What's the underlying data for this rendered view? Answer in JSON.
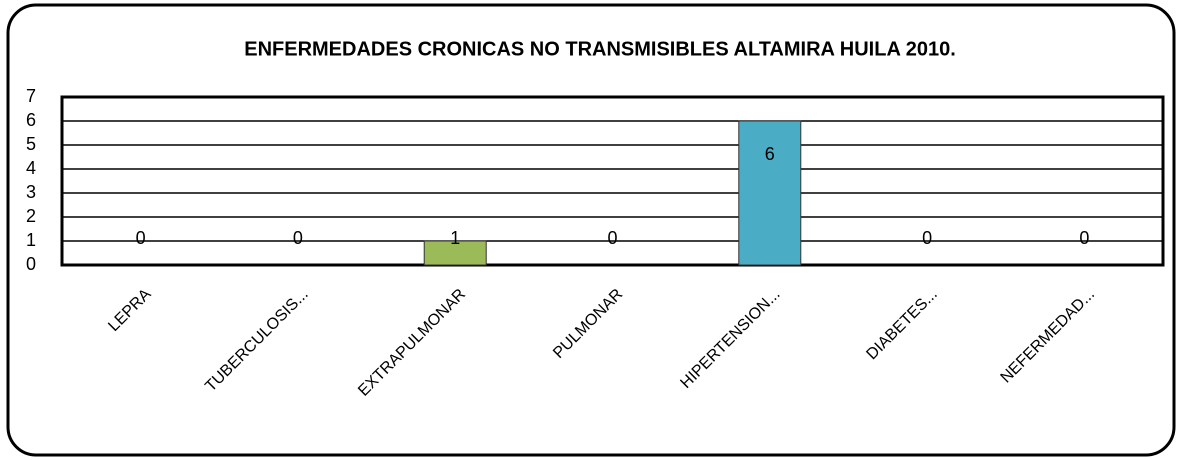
{
  "chart_data": {
    "type": "bar",
    "title": "ENFERMEDADES CRONICAS NO TRANSMISIBLES ALTAMIRA HUILA 2010.",
    "categories": [
      "LEPRA",
      "TUBERCULOSIS...",
      "EXTRAPULMONAR",
      "PULMONAR",
      "HIPERTENSION...",
      "DIABETES...",
      "NEFERMEDAD..."
    ],
    "values": [
      0,
      0,
      1,
      0,
      6,
      0,
      0
    ],
    "colors": [
      "#4f81bd",
      "#c0504d",
      "#9bbb59",
      "#8064a2",
      "#4bacc6",
      "#f79646",
      "#2c4d75"
    ],
    "ylim": [
      0,
      7
    ],
    "yticks": [
      0,
      1,
      2,
      3,
      4,
      5,
      6,
      7
    ],
    "grid": true
  }
}
